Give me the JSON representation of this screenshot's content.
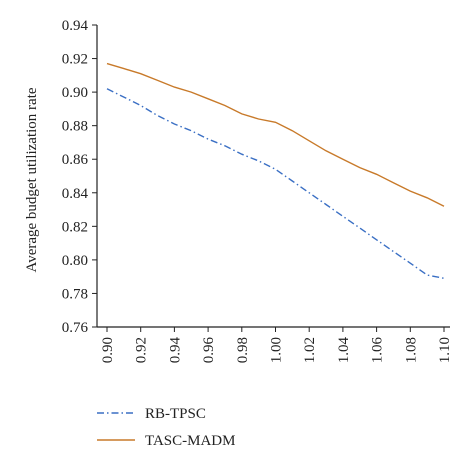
{
  "chart_data": {
    "type": "line",
    "title": "",
    "xlabel": "",
    "ylabel": "Average budget utilization rate",
    "xlim": [
      0.9,
      1.1
    ],
    "ylim": [
      0.76,
      0.94
    ],
    "x_ticks": [
      "0.90",
      "0.92",
      "0.94",
      "0.96",
      "0.98",
      "1.00",
      "1.02",
      "1.04",
      "1.06",
      "1.08",
      "1.10"
    ],
    "y_ticks": [
      "0.76",
      "0.78",
      "0.80",
      "0.82",
      "0.84",
      "0.86",
      "0.88",
      "0.90",
      "0.92",
      "0.94"
    ],
    "grid": false,
    "legend_position": "bottom-left",
    "x": [
      0.9,
      0.91,
      0.92,
      0.93,
      0.94,
      0.95,
      0.96,
      0.97,
      0.98,
      0.99,
      1.0,
      1.01,
      1.02,
      1.03,
      1.04,
      1.05,
      1.06,
      1.07,
      1.08,
      1.09,
      1.1
    ],
    "series": [
      {
        "name": "RB-TPSC",
        "color": "#3a6fc4",
        "style": "dash-dot",
        "values": [
          0.902,
          0.897,
          0.892,
          0.886,
          0.881,
          0.877,
          0.872,
          0.868,
          0.863,
          0.859,
          0.854,
          0.847,
          0.84,
          0.833,
          0.826,
          0.819,
          0.812,
          0.805,
          0.798,
          0.791,
          0.789
        ]
      },
      {
        "name": "TASC-MADM",
        "color": "#c87a2a",
        "style": "solid",
        "values": [
          0.917,
          0.914,
          0.911,
          0.907,
          0.903,
          0.9,
          0.896,
          0.892,
          0.887,
          0.884,
          0.882,
          0.877,
          0.871,
          0.865,
          0.86,
          0.855,
          0.851,
          0.846,
          0.841,
          0.837,
          0.832
        ]
      }
    ]
  }
}
